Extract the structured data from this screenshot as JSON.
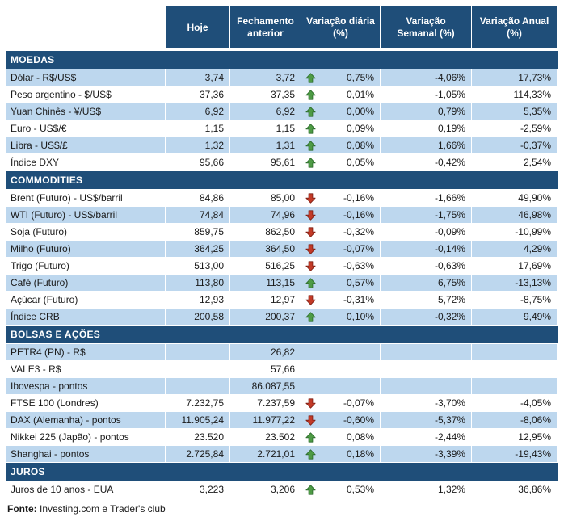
{
  "chart_data": {
    "type": "table",
    "columns": [
      "Hoje",
      "Fechamento anterior",
      "Variação diária (%)",
      "Variação Semanal (%)",
      "Variação Anual (%)"
    ],
    "sections": [
      {
        "title": "MOEDAS",
        "rows": [
          {
            "label": "Dólar - R$/US$",
            "hoje": "3,74",
            "fechamento": "3,72",
            "trend": "up",
            "diaria": "0,75%",
            "semanal": "-4,06%",
            "anual": "17,73%"
          },
          {
            "label": "Peso argentino - $/US$",
            "hoje": "37,36",
            "fechamento": "37,35",
            "trend": "up",
            "diaria": "0,01%",
            "semanal": "-1,05%",
            "anual": "114,33%"
          },
          {
            "label": "Yuan Chinês - ¥/US$",
            "hoje": "6,92",
            "fechamento": "6,92",
            "trend": "up",
            "diaria": "0,00%",
            "semanal": "0,79%",
            "anual": "5,35%"
          },
          {
            "label": "Euro - US$/€",
            "hoje": "1,15",
            "fechamento": "1,15",
            "trend": "up",
            "diaria": "0,09%",
            "semanal": "0,19%",
            "anual": "-2,59%"
          },
          {
            "label": "Libra - US$/£",
            "hoje": "1,32",
            "fechamento": "1,31",
            "trend": "up",
            "diaria": "0,08%",
            "semanal": "1,66%",
            "anual": "-0,37%"
          },
          {
            "label": "Índice DXY",
            "hoje": "95,66",
            "fechamento": "95,61",
            "trend": "up",
            "diaria": "0,05%",
            "semanal": "-0,42%",
            "anual": "2,54%"
          }
        ]
      },
      {
        "title": "COMMODITIES",
        "rows": [
          {
            "label": "Brent (Futuro) - US$/barril",
            "hoje": "84,86",
            "fechamento": "85,00",
            "trend": "down",
            "diaria": "-0,16%",
            "semanal": "-1,66%",
            "anual": "49,90%"
          },
          {
            "label": "WTI (Futuro) - US$/barril",
            "hoje": "74,84",
            "fechamento": "74,96",
            "trend": "down",
            "diaria": "-0,16%",
            "semanal": "-1,75%",
            "anual": "46,98%"
          },
          {
            "label": "Soja (Futuro)",
            "hoje": "859,75",
            "fechamento": "862,50",
            "trend": "down",
            "diaria": "-0,32%",
            "semanal": "-0,09%",
            "anual": "-10,99%"
          },
          {
            "label": "Milho (Futuro)",
            "hoje": "364,25",
            "fechamento": "364,50",
            "trend": "down",
            "diaria": "-0,07%",
            "semanal": "-0,14%",
            "anual": "4,29%"
          },
          {
            "label": "Trigo (Futuro)",
            "hoje": "513,00",
            "fechamento": "516,25",
            "trend": "down",
            "diaria": "-0,63%",
            "semanal": "-0,63%",
            "anual": "17,69%"
          },
          {
            "label": "Café (Futuro)",
            "hoje": "113,80",
            "fechamento": "113,15",
            "trend": "up",
            "diaria": "0,57%",
            "semanal": "6,75%",
            "anual": "-13,13%"
          },
          {
            "label": "Açúcar (Futuro)",
            "hoje": "12,93",
            "fechamento": "12,97",
            "trend": "down",
            "diaria": "-0,31%",
            "semanal": "5,72%",
            "anual": "-8,75%"
          },
          {
            "label": "Índice CRB",
            "hoje": "200,58",
            "fechamento": "200,37",
            "trend": "up",
            "diaria": "0,10%",
            "semanal": "-0,32%",
            "anual": "9,49%"
          }
        ]
      },
      {
        "title": "BOLSAS E AÇÕES",
        "rows": [
          {
            "label": "PETR4 (PN) - R$",
            "hoje": "",
            "fechamento": "26,82",
            "trend": "",
            "diaria": "",
            "semanal": "",
            "anual": ""
          },
          {
            "label": "VALE3 - R$",
            "hoje": "",
            "fechamento": "57,66",
            "trend": "",
            "diaria": "",
            "semanal": "",
            "anual": ""
          },
          {
            "label": "Ibovespa - pontos",
            "hoje": "",
            "fechamento": "86.087,55",
            "trend": "",
            "diaria": "",
            "semanal": "",
            "anual": ""
          },
          {
            "label": "FTSE 100 (Londres)",
            "hoje": "7.232,75",
            "fechamento": "7.237,59",
            "trend": "down",
            "diaria": "-0,07%",
            "semanal": "-3,70%",
            "anual": "-4,05%"
          },
          {
            "label": "DAX (Alemanha) - pontos",
            "hoje": "11.905,24",
            "fechamento": "11.977,22",
            "trend": "down",
            "diaria": "-0,60%",
            "semanal": "-5,37%",
            "anual": "-8,06%"
          },
          {
            "label": "Nikkei 225 (Japão) - pontos",
            "hoje": "23.520",
            "fechamento": "23.502",
            "trend": "up",
            "diaria": "0,08%",
            "semanal": "-2,44%",
            "anual": "12,95%"
          },
          {
            "label": "Shanghai - pontos",
            "hoje": "2.725,84",
            "fechamento": "2.721,01",
            "trend": "up",
            "diaria": "0,18%",
            "semanal": "-3,39%",
            "anual": "-19,43%"
          }
        ]
      },
      {
        "title": "JUROS",
        "rows": [
          {
            "label": "Juros de 10 anos - EUA",
            "hoje": "3,223",
            "fechamento": "3,206",
            "trend": "up",
            "diaria": "0,53%",
            "semanal": "1,32%",
            "anual": "36,86%"
          }
        ]
      }
    ]
  },
  "footer": {
    "label": "Fonte:",
    "text": "Investing.com e Trader's club"
  },
  "colors": {
    "header_bg": "#1F4E79",
    "stripe_bg": "#BDD7EE",
    "arrow_up": "#4E9B45",
    "arrow_down": "#C33A27"
  }
}
